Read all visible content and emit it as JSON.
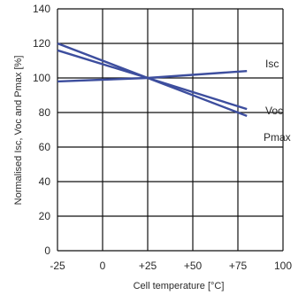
{
  "chart_data": {
    "type": "line",
    "title": "",
    "xlabel": "Cell temperature [°C]",
    "ylabel": "Normalised Isc, Voc and Pmax [%]",
    "xlim": [
      -25,
      100
    ],
    "ylim": [
      0,
      140
    ],
    "xticks": [
      {
        "value": -25,
        "label": "-25"
      },
      {
        "value": 0,
        "label": "0"
      },
      {
        "value": 25,
        "label": "+25"
      },
      {
        "value": 50,
        "label": "+50"
      },
      {
        "value": 75,
        "label": "+75"
      },
      {
        "value": 100,
        "label": "100"
      }
    ],
    "yticks": [
      0,
      20,
      40,
      60,
      80,
      100,
      120,
      140
    ],
    "grid": true,
    "series_color": "#3d4e9e",
    "series": [
      {
        "name": "Isc",
        "x": [
          -25,
          25,
          80
        ],
        "y": [
          98,
          100,
          104
        ]
      },
      {
        "name": "Voc",
        "x": [
          -25,
          25,
          80
        ],
        "y": [
          116,
          100,
          82
        ]
      },
      {
        "name": "Pmax",
        "x": [
          -25,
          25,
          80
        ],
        "y": [
          120,
          100,
          78
        ]
      }
    ]
  }
}
